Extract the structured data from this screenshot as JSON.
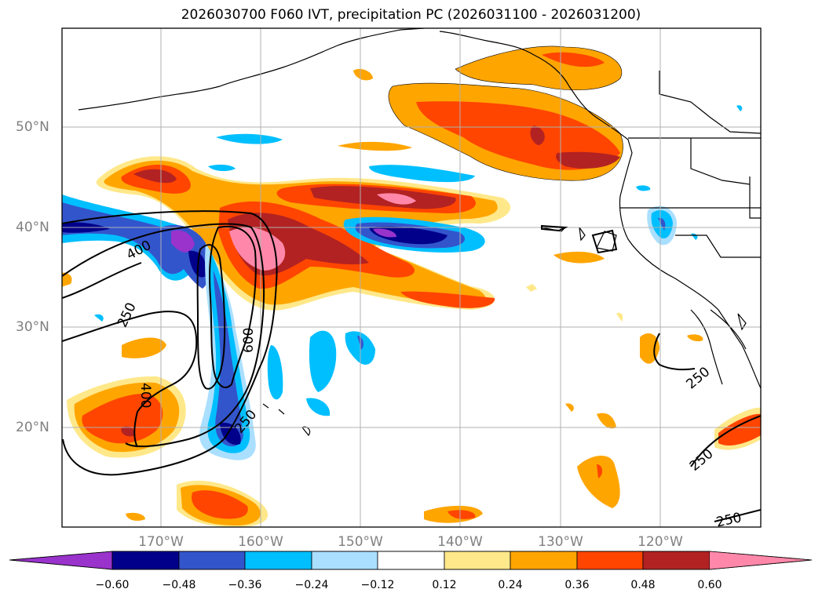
{
  "title": "2026030700 F060 IVT, precipitation PC (2026031100 - 2026031200)",
  "map": {
    "lat_labels": [
      "50°N",
      "40°N",
      "30°N",
      "20°N"
    ],
    "lon_labels": [
      "170°W",
      "160°W",
      "150°W",
      "140°W",
      "130°W",
      "120°W"
    ],
    "gridlines": true,
    "contour_labels": [
      "400",
      "250",
      "600",
      "400",
      "250",
      "250",
      "250",
      "250"
    ]
  },
  "colorbar": {
    "ticks": [
      "−0.60",
      "−0.48",
      "−0.36",
      "−0.24",
      "−0.12",
      "0.12",
      "0.24",
      "0.36",
      "0.48",
      "0.60"
    ],
    "colors": [
      "#9933cc",
      "#00008b",
      "#3355cc",
      "#00bfff",
      "#aadfff",
      "#ffffff",
      "#ffe88a",
      "#ffa500",
      "#ff4500",
      "#b22222",
      "#ff88aa"
    ],
    "extend": "both"
  }
}
